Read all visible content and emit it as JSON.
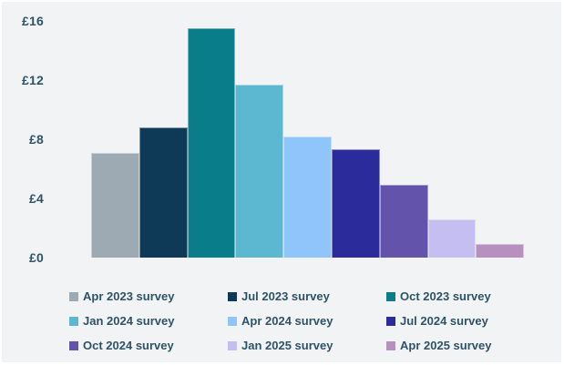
{
  "chart_data": {
    "type": "bar",
    "categories": [
      "Apr 2023 survey",
      "Jul 2023 survey",
      "Oct 2023 survey",
      "Jan 2024 survey",
      "Apr 2024 survey",
      "Jul 2024 survey",
      "Oct 2024 survey",
      "Jan 2025 survey",
      "Apr 2025 survey"
    ],
    "values": [
      7.1,
      8.8,
      15.5,
      11.7,
      8.2,
      7.3,
      4.9,
      2.6,
      0.9
    ],
    "colors": [
      "#9DA9B3",
      "#0E3A57",
      "#0A7D8A",
      "#5CB7D1",
      "#90C5FB",
      "#2B2B9C",
      "#6353AB",
      "#C4BEF1",
      "#B890BF"
    ],
    "title": "",
    "xlabel": "",
    "ylabel": "",
    "ylim": [
      0,
      16
    ],
    "y_ticks": [
      "£0",
      "£4",
      "£8",
      "£12",
      "£16"
    ],
    "grid": false,
    "legend_position": "bottom",
    "text_color": "#2E5368",
    "panel_background": "#F2F3F4"
  }
}
